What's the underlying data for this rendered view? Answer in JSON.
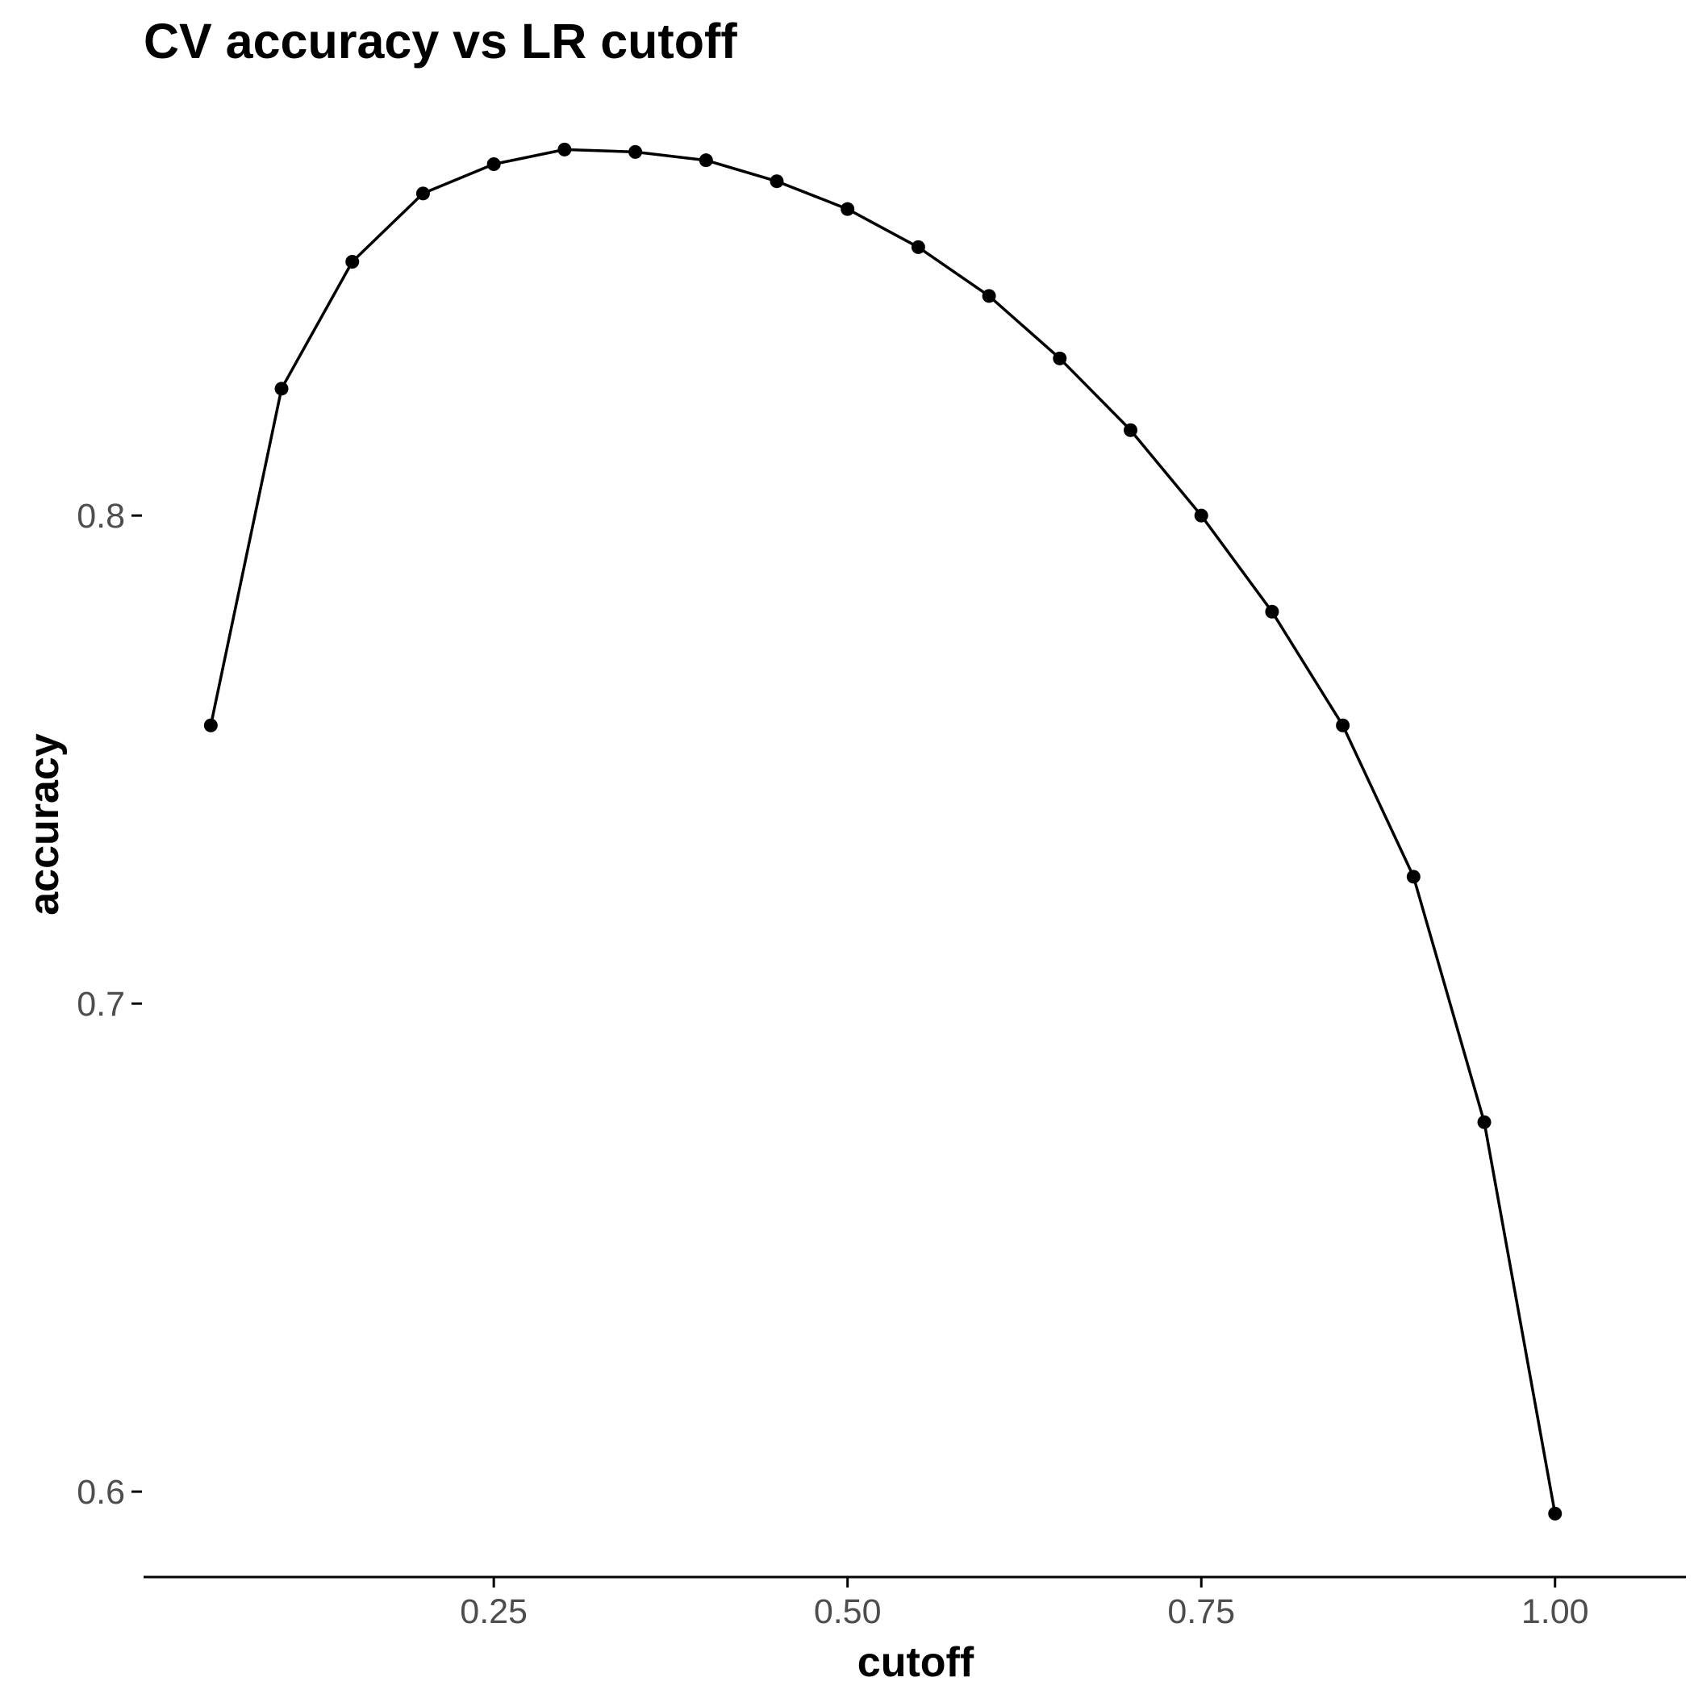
{
  "chart_data": {
    "type": "line",
    "title": "CV accuracy vs LR cutoff",
    "xlabel": "cutoff",
    "ylabel": "accuracy",
    "xlim": [
      0.0025,
      1.0925
    ],
    "ylim": [
      0.5825,
      0.8825
    ],
    "xticks": [
      {
        "value": 0.25,
        "label": "0.25"
      },
      {
        "value": 0.5,
        "label": "0.50"
      },
      {
        "value": 0.75,
        "label": "0.75"
      },
      {
        "value": 1.0,
        "label": "1.00"
      }
    ],
    "yticks": [
      {
        "value": 0.6,
        "label": "0.6"
      },
      {
        "value": 0.7,
        "label": "0.7"
      },
      {
        "value": 0.8,
        "label": "0.8"
      }
    ],
    "grid": false,
    "legend": "none",
    "series": [
      {
        "color": "#000000",
        "x": [
          0.05,
          0.1,
          0.15,
          0.2,
          0.25,
          0.3,
          0.35,
          0.4,
          0.45,
          0.5,
          0.55,
          0.6,
          0.65,
          0.7,
          0.75,
          0.8,
          0.85,
          0.9,
          0.95,
          1.0
        ],
        "y": [
          0.757,
          0.826,
          0.852,
          0.866,
          0.872,
          0.875,
          0.8745,
          0.8728,
          0.8685,
          0.8628,
          0.855,
          0.845,
          0.8322,
          0.8175,
          0.8,
          0.7803,
          0.757,
          0.726,
          0.6757,
          0.5955
        ]
      }
    ]
  }
}
